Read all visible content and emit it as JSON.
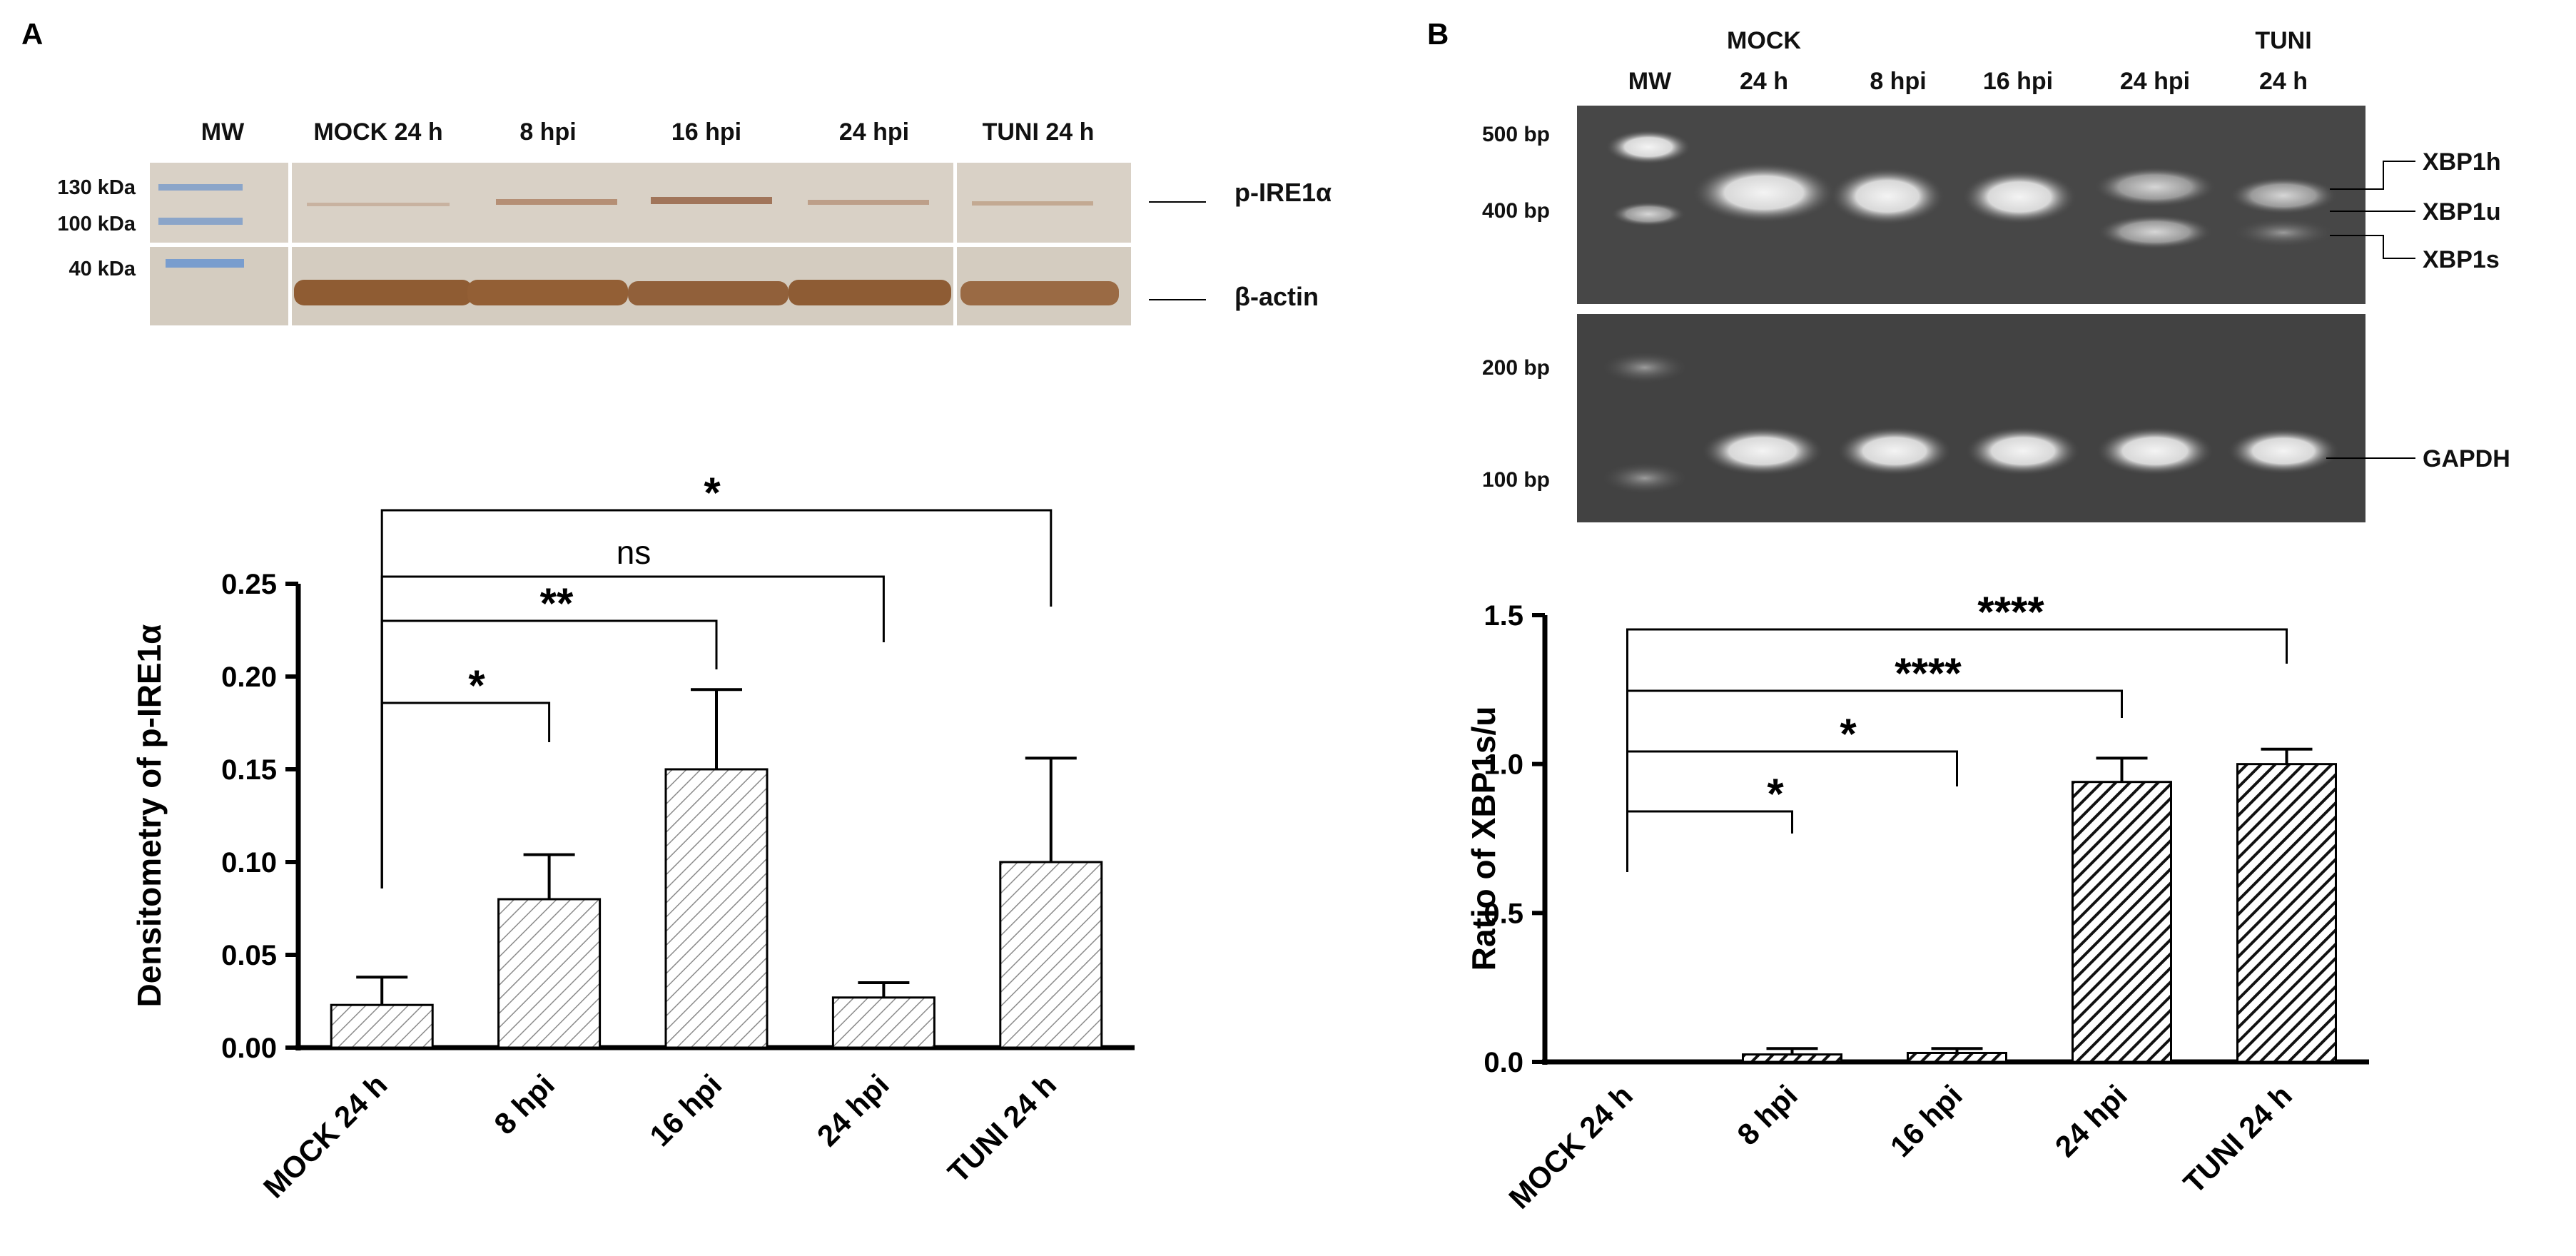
{
  "panels": {
    "a": {
      "letter": "A",
      "blot": {
        "lanes": [
          "MW",
          "MOCK 24 h",
          "8 hpi",
          "16 hpi",
          "24 hpi",
          "TUNI 24 h"
        ],
        "markers": [
          "130 kDa",
          "100 kDa",
          "40 kDa"
        ],
        "targets": [
          "p-IRE1α",
          "β-actin"
        ]
      }
    },
    "b": {
      "letter": "B",
      "gel": {
        "lanes": [
          {
            "line1": "",
            "line2": "MW"
          },
          {
            "line1": "MOCK",
            "line2": "24 h"
          },
          {
            "line1": "",
            "line2": "8 hpi"
          },
          {
            "line1": "",
            "line2": "16 hpi"
          },
          {
            "line1": "",
            "line2": "24 hpi"
          },
          {
            "line1": "TUNI",
            "line2": "24 h"
          }
        ],
        "markers_top": [
          "500 bp",
          "400 bp"
        ],
        "markers_bottom": [
          "200 bp",
          "100 bp"
        ],
        "bands": [
          "XBP1h",
          "XBP1u",
          "XBP1s",
          "GAPDH"
        ]
      }
    }
  },
  "chart_data": [
    {
      "type": "bar",
      "categories": [
        "MOCK 24 h",
        "8 hpi",
        "16 hpi",
        "24 hpi",
        "TUNI 24 h"
      ],
      "values": [
        0.023,
        0.08,
        0.15,
        0.027,
        0.1
      ],
      "errors": [
        0.015,
        0.024,
        0.043,
        0.008,
        0.056
      ],
      "title": "",
      "xlabel": "",
      "ylabel": "Densitometry of p-IRE1α",
      "ylim": [
        0,
        0.25
      ],
      "yticks": [
        "0.00",
        "0.05",
        "0.10",
        "0.15",
        "0.20",
        "0.25"
      ],
      "bar_style": "light-hatch",
      "bar_color": "#808080",
      "grid": false,
      "significance": [
        {
          "from": "MOCK 24 h",
          "to": "8 hpi",
          "label": "*"
        },
        {
          "from": "MOCK 24 h",
          "to": "16 hpi",
          "label": "**"
        },
        {
          "from": "MOCK 24 h",
          "to": "24 hpi",
          "label": "ns"
        },
        {
          "from": "MOCK 24 h",
          "to": "TUNI 24 h",
          "label": "*"
        }
      ]
    },
    {
      "type": "bar",
      "categories": [
        "MOCK 24 h",
        "8 hpi",
        "16 hpi",
        "24 hpi",
        "TUNI 24 h"
      ],
      "values": [
        0.0,
        0.025,
        0.03,
        0.94,
        1.0
      ],
      "errors": [
        0.0,
        0.02,
        0.015,
        0.08,
        0.05
      ],
      "title": "",
      "xlabel": "",
      "ylabel": "Ratio of XBP1s/u",
      "ylim": [
        0,
        1.5
      ],
      "yticks": [
        "0.0",
        "0.5",
        "1.0",
        "1.5"
      ],
      "bar_style": "dark-hatch",
      "bar_color": "#000000",
      "grid": false,
      "significance": [
        {
          "from": "MOCK 24 h",
          "to": "8 hpi",
          "label": "*"
        },
        {
          "from": "MOCK 24 h",
          "to": "16 hpi",
          "label": "*"
        },
        {
          "from": "MOCK 24 h",
          "to": "24 hpi",
          "label": "****"
        },
        {
          "from": "MOCK 24 h",
          "to": "TUNI 24 h",
          "label": "****"
        }
      ]
    }
  ]
}
